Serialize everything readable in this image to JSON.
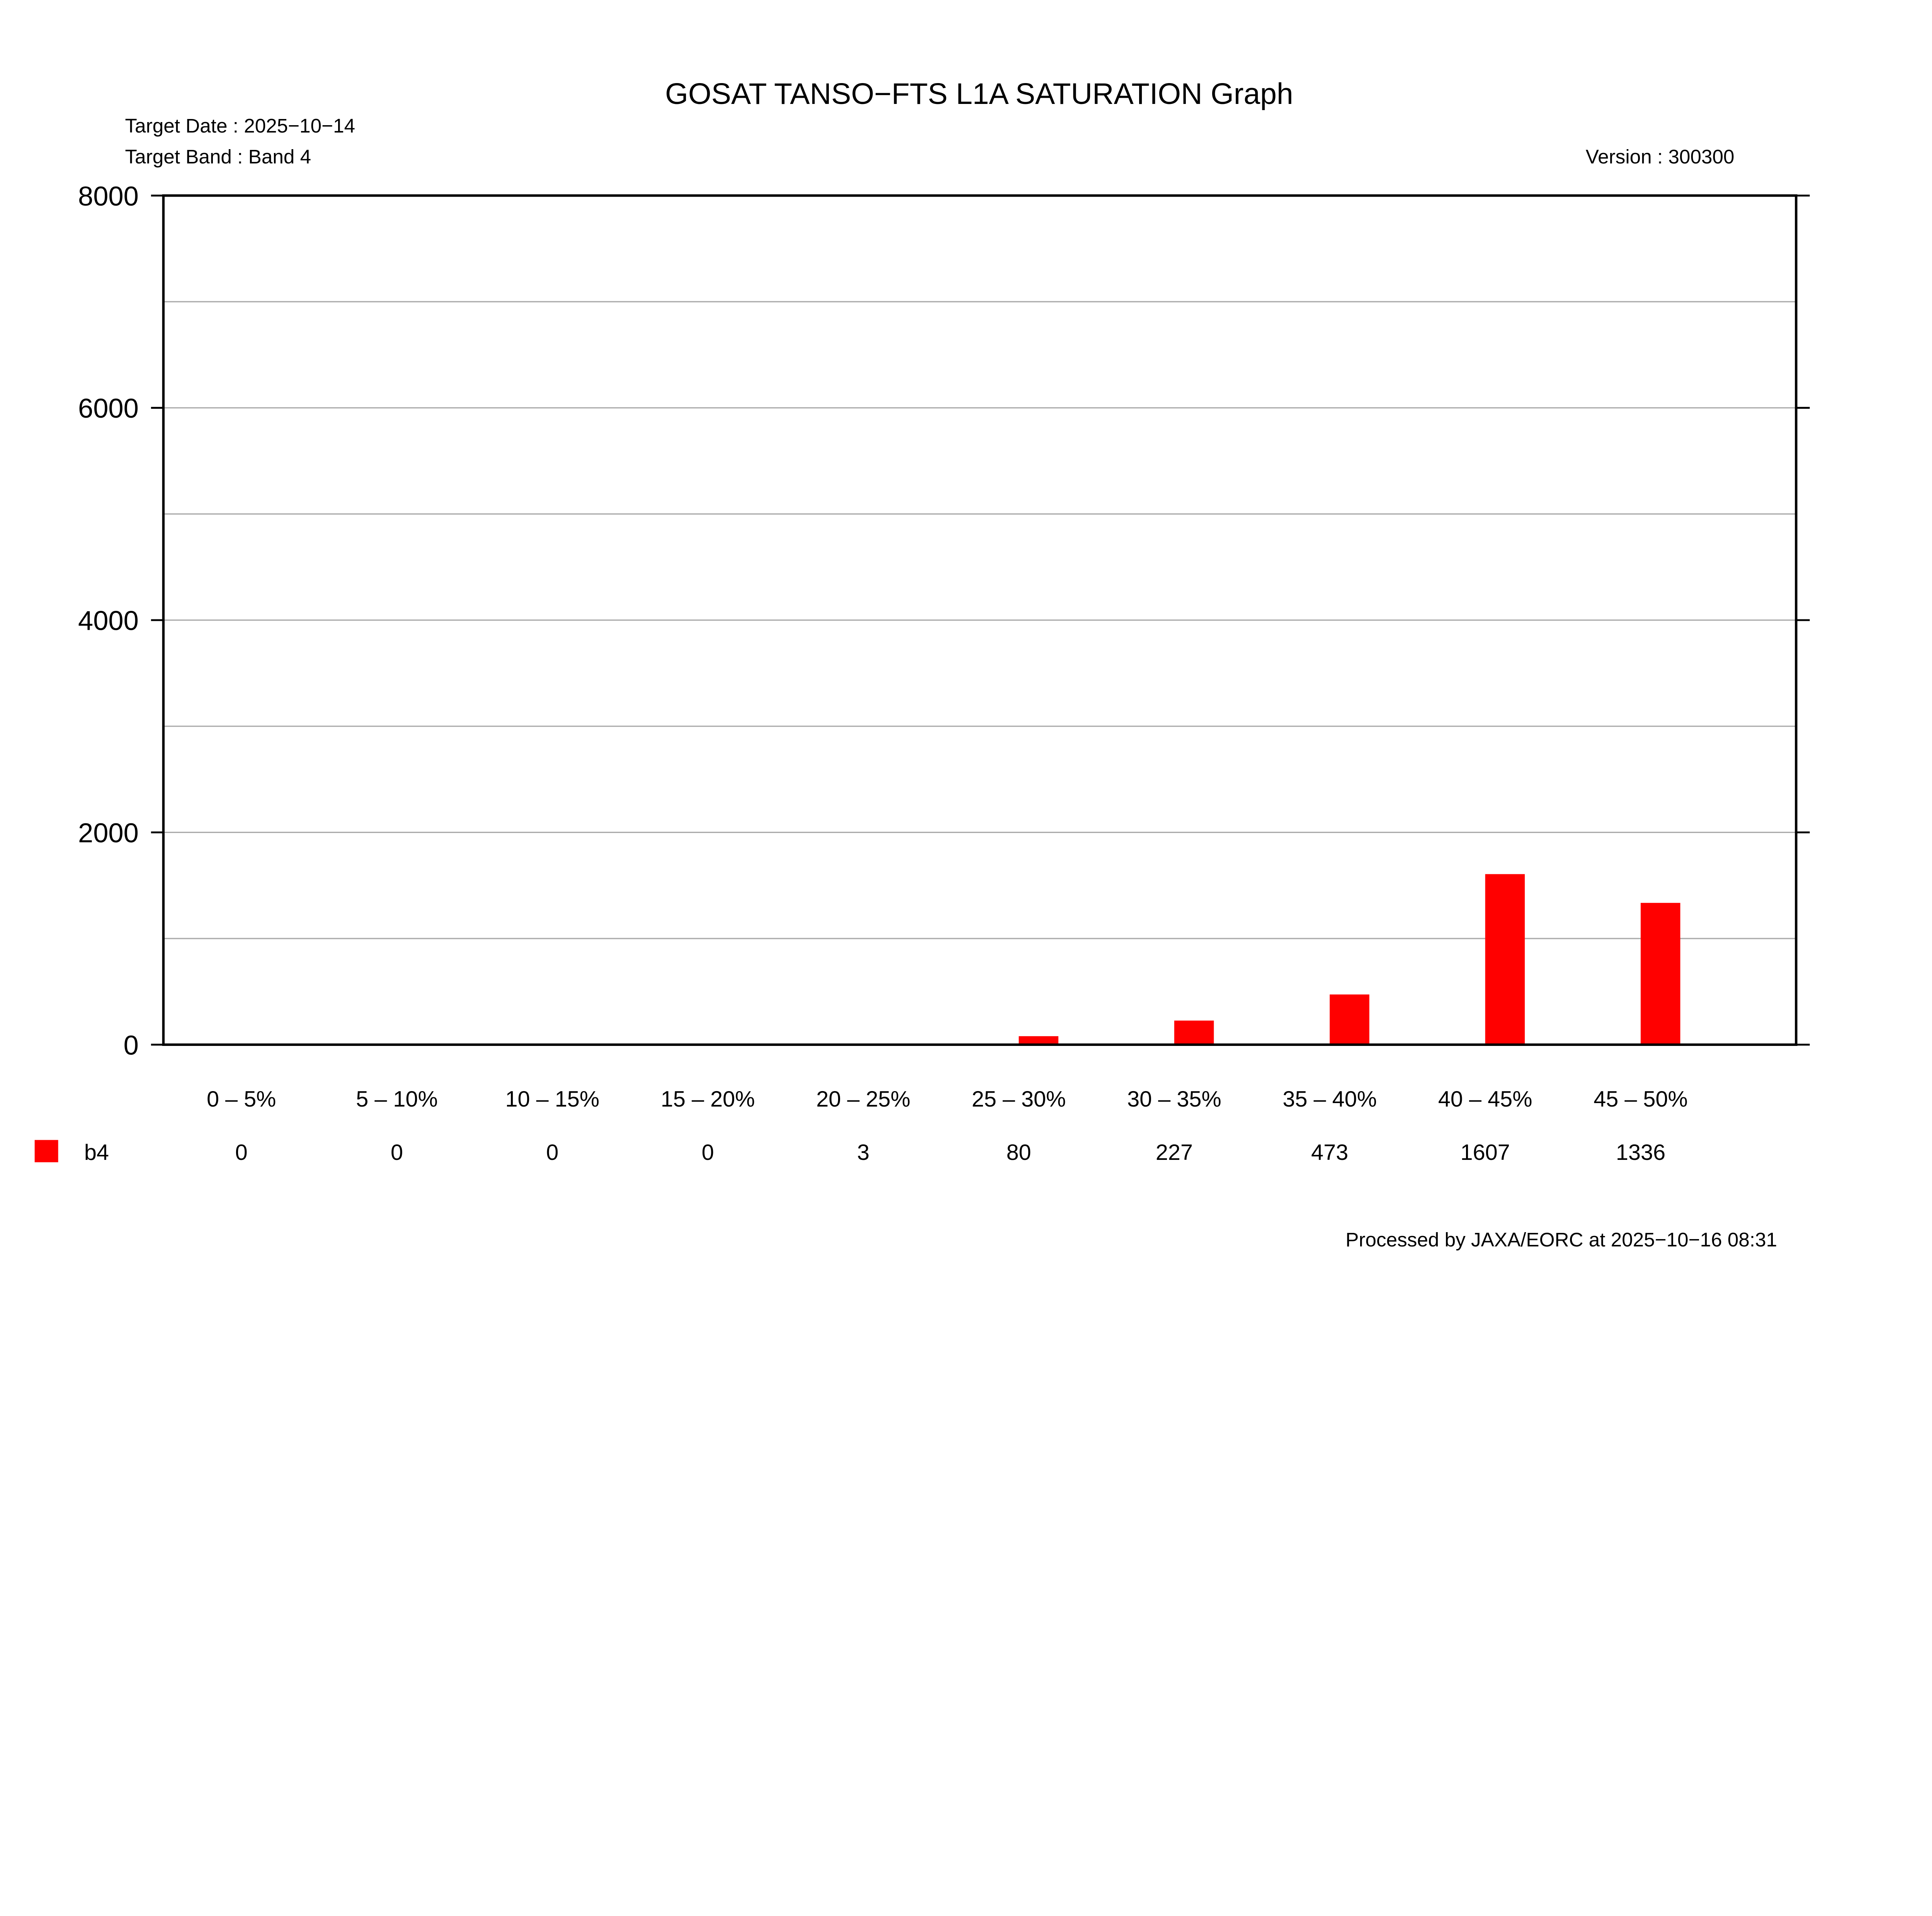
{
  "header": {
    "title": "GOSAT TANSO−FTS L1A SATURATION Graph",
    "target_date": "Target Date : 2025−10−14",
    "target_band": "Target Band : Band 4",
    "version": "Version : 300300"
  },
  "footer": {
    "processed": "Processed by JAXA/EORC at 2025−10−16 08:31"
  },
  "chart_data": {
    "type": "bar",
    "title": "GOSAT TANSO−FTS L1A SATURATION Graph",
    "categories": [
      "0 –  5%",
      "5 – 10%",
      "10 – 15%",
      "15 – 20%",
      "20 – 25%",
      "25 – 30%",
      "30 – 35%",
      "35 – 40%",
      "40 – 45%",
      "45 – 50%"
    ],
    "series": [
      {
        "name": "b4",
        "color": "#ff0000",
        "values": [
          0,
          0,
          0,
          0,
          3,
          80,
          227,
          473,
          1607,
          1336
        ]
      }
    ],
    "value_labels": [
      "0",
      "0",
      "0",
      "0",
      "3",
      "80",
      "227",
      "473",
      "1607",
      "1336"
    ],
    "ylim": [
      0,
      8000
    ],
    "yticks": [
      "0",
      "2000",
      "4000",
      "6000",
      "8000"
    ],
    "minor_grid_step": 1000,
    "grid": true,
    "legend": "bottom-left, as table row",
    "xlabel": "",
    "ylabel": ""
  }
}
